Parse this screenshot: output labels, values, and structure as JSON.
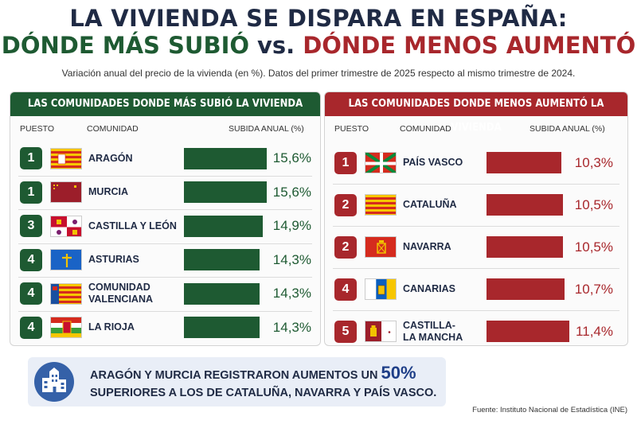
{
  "title": {
    "line1": "LA VIVIENDA SE DISPARA EN ESPAÑA:",
    "line2_left": "DÓNDE MÁS SUBIÓ",
    "line2_vs": "vs.",
    "line2_right": "DÓNDE MENOS AUMENTÓ"
  },
  "subtitle": "Variación anual del precio de la vivienda (en %). Datos del primer trimestre de 2025 respecto al mismo trimestre de 2024.",
  "columns": {
    "rank": "PUESTO",
    "region": "COMUNIDAD",
    "value": "SUBIDA ANUAL (%)"
  },
  "colors": {
    "green": "#1e5a32",
    "red": "#a8272c",
    "navy": "#1f2a44"
  },
  "chart_data": [
    {
      "type": "bar",
      "title": "LAS COMUNIDADES DONDE MÁS SUBIÓ LA VIVIENDA",
      "categories": [
        "ARAGÓN",
        "MURCIA",
        "CASTILLA Y LEÓN",
        "ASTURIAS",
        "COMUNIDAD VALENCIANA",
        "LA RIOJA"
      ],
      "ranks": [
        "1",
        "1",
        "3",
        "4",
        "4",
        "4"
      ],
      "values": [
        15.6,
        15.6,
        14.9,
        14.3,
        14.3,
        14.3
      ],
      "labels": [
        "15,6%",
        "15,6%",
        "14,9%",
        "14,3%",
        "14,3%",
        "14,3%"
      ],
      "flags": [
        "flag-aragon-icon",
        "flag-murcia-icon",
        "flag-castilla-leon-icon",
        "flag-asturias-icon",
        "flag-valencia-icon",
        "flag-la-rioja-icon"
      ],
      "color": "#1e5a32"
    },
    {
      "type": "bar",
      "title": "LAS COMUNIDADES DONDE MENOS AUMENTÓ LA VIVIENDA",
      "categories": [
        "PAÍS VASCO",
        "CATALUÑA",
        "NAVARRA",
        "CANARIAS",
        "CASTILLA-LA MANCHA"
      ],
      "display_lines": [
        [
          "PAÍS VASCO"
        ],
        [
          "CATALUÑA"
        ],
        [
          "NAVARRA"
        ],
        [
          "CANARIAS"
        ],
        [
          "CASTILLA-",
          "LA MANCHA"
        ]
      ],
      "ranks": [
        "1",
        "2",
        "2",
        "4",
        "5"
      ],
      "values": [
        10.3,
        10.5,
        10.5,
        10.7,
        11.4
      ],
      "labels": [
        "10,3%",
        "10,5%",
        "10,5%",
        "10,7%",
        "11,4%"
      ],
      "flags": [
        "flag-pais-vasco-icon",
        "flag-cataluna-icon",
        "flag-navarra-icon",
        "flag-canarias-icon",
        "flag-castilla-la-mancha-icon"
      ],
      "color": "#a8272c"
    }
  ],
  "note": {
    "part1": "ARAGÓN Y MURCIA",
    "part2": " REGISTRARON AUMENTOS UN ",
    "part3": "50%",
    "part4": "SUPERIORES",
    "part5": " A LOS DE CATALUÑA, NAVARRA Y PAÍS VASCO.",
    "icon": "buildings-icon"
  },
  "source": "Fuente: Instituto Nacional de Estadística (INE)"
}
